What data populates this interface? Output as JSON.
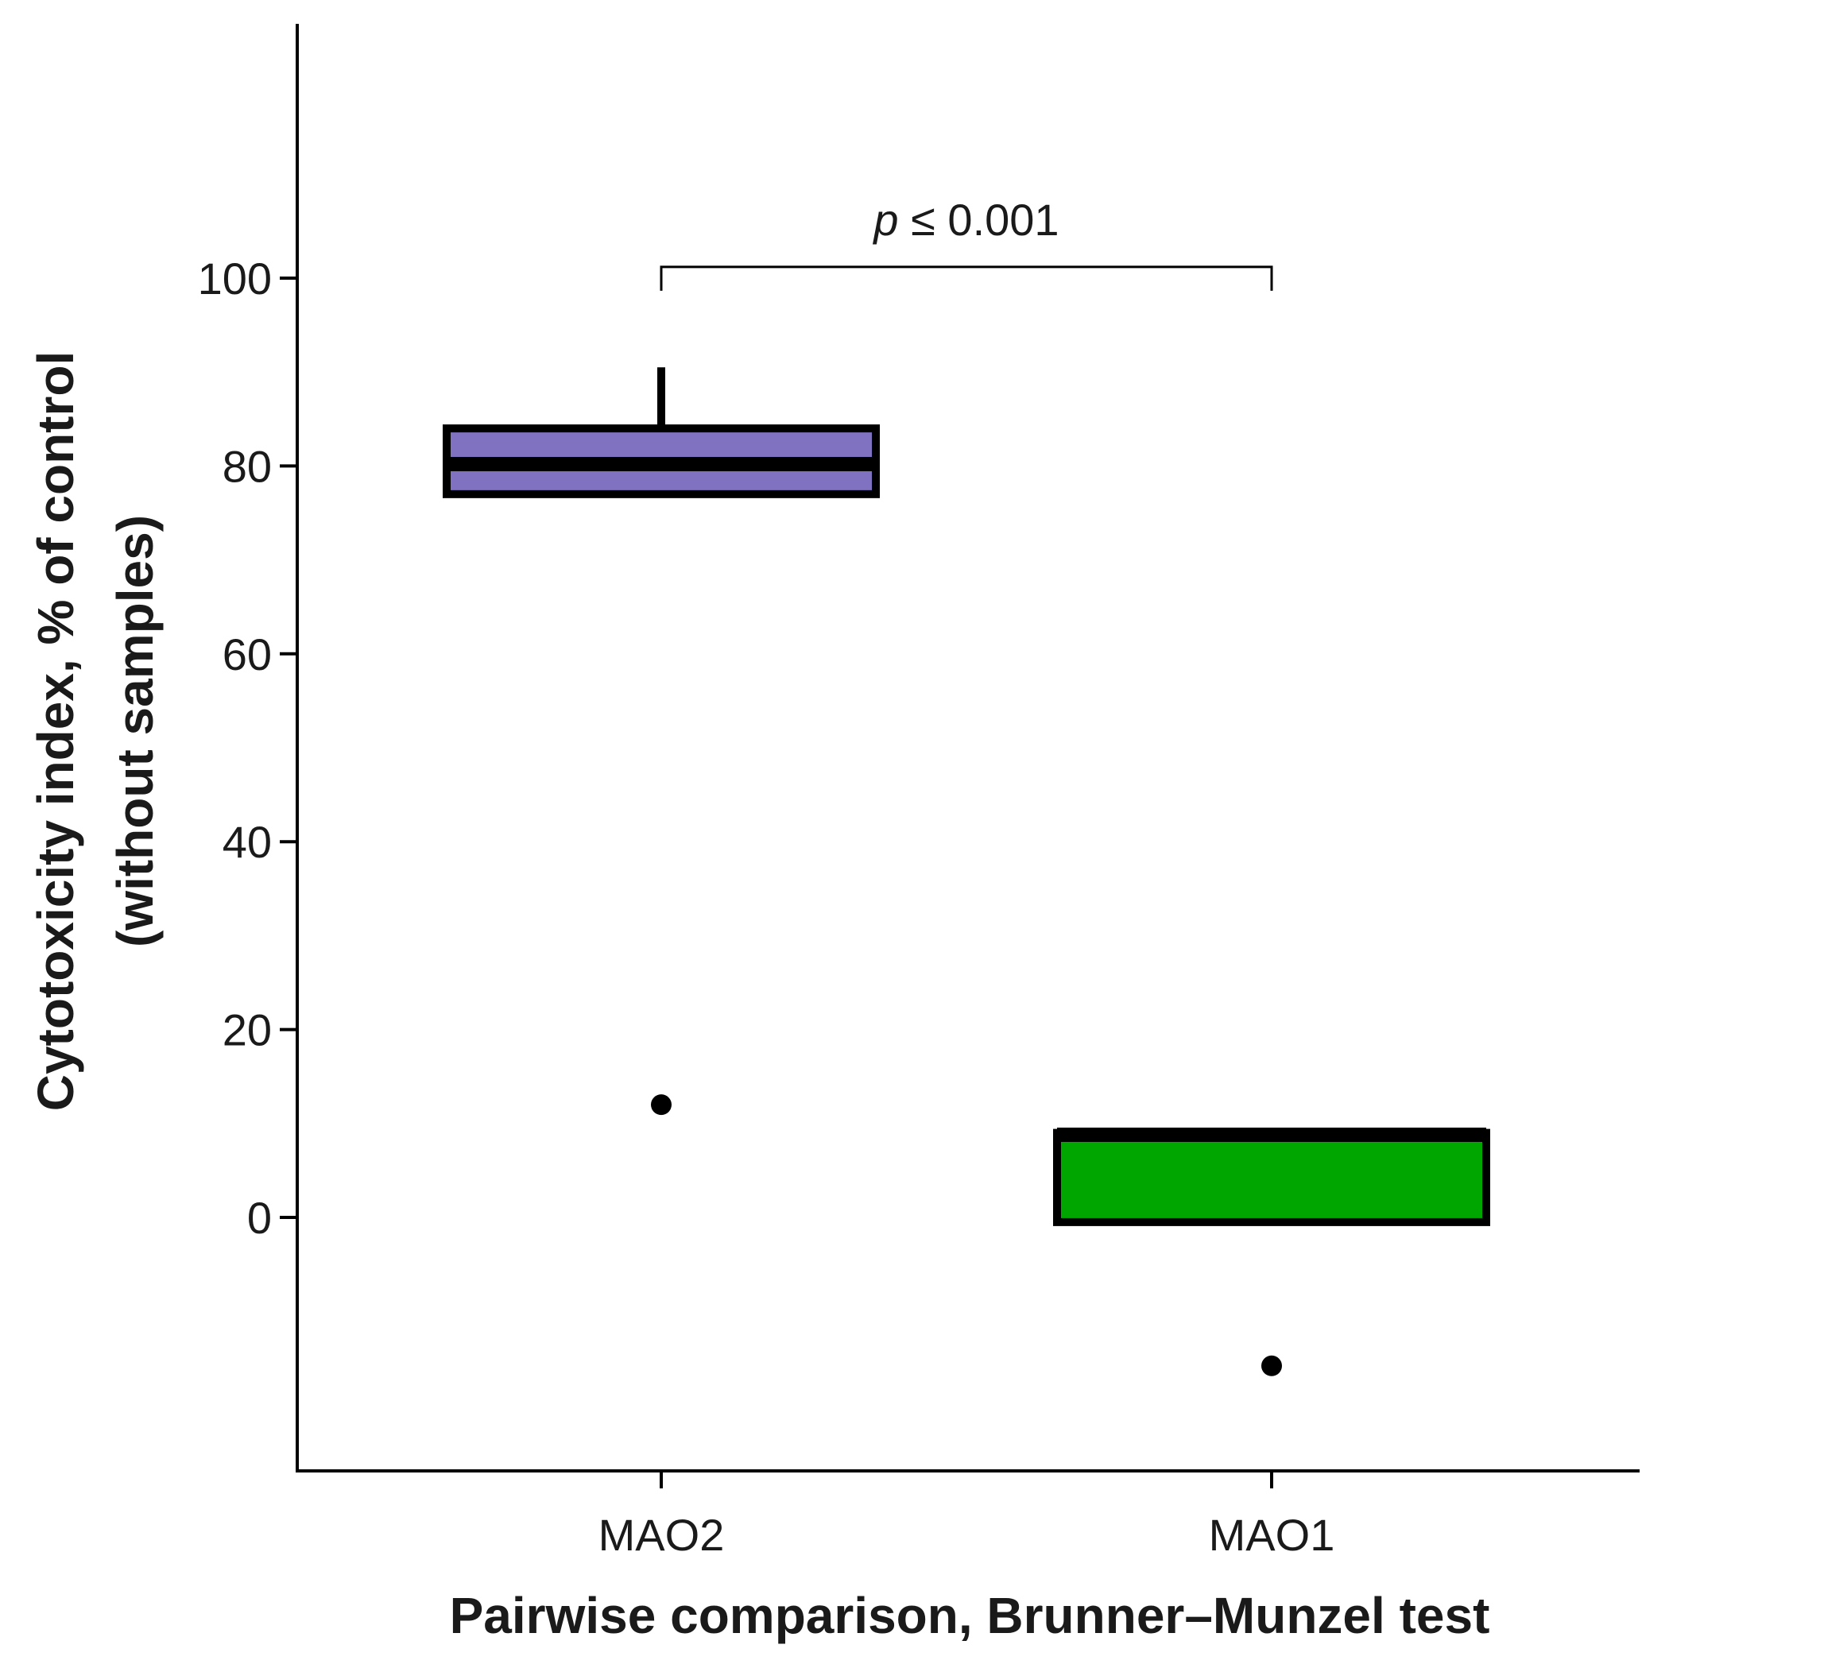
{
  "chart_data": {
    "type": "boxplot",
    "title": "",
    "xlabel": "Pairwise comparison, Brunner–Munzel test",
    "ylabel": [
      "Cytotoxicity index, % of control",
      "(without samples)"
    ],
    "ylim": [
      -27,
      127
    ],
    "yticks": [
      0,
      20,
      40,
      60,
      80,
      100
    ],
    "ytick_labels": [
      "0",
      "20",
      "40",
      "60",
      "80",
      "100"
    ],
    "grid": false,
    "legend": "none",
    "categories": [
      "MAO2",
      "MAO1"
    ],
    "boxes": [
      {
        "category": "MAO2",
        "q1": 77,
        "median": 80.2,
        "q3": 84,
        "whisker_low": 77,
        "whisker_high": 90.5,
        "outliers": [
          12
        ],
        "color": "#8072c0"
      },
      {
        "category": "MAO1",
        "q1": -0.5,
        "median": 8.8,
        "q3": 9,
        "whisker_low": -0.5,
        "whisker_high": 9.5,
        "outliers": [
          -15.8
        ],
        "color": "#00a600"
      }
    ],
    "annotation": {
      "p_symbol": "p",
      "p_value": " ≤ 0.001",
      "groups": [
        "MAO2",
        "MAO1"
      ],
      "y": 101.2
    }
  }
}
